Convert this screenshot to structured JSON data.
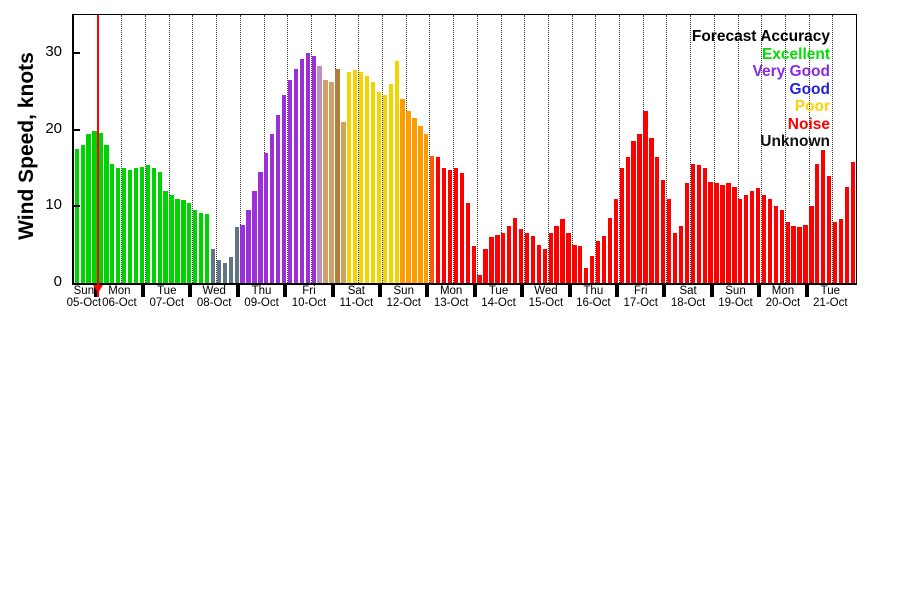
{
  "chart_data": {
    "type": "bar",
    "title": "",
    "ylabel": "Wind Speed, knots",
    "xlabel": "",
    "ylim": [
      0,
      35
    ],
    "yticks": [
      0,
      10,
      20,
      30
    ],
    "x_start": "05-Oct 12:00",
    "bar_interval_hours": 3,
    "bars_per_day": 8,
    "first_day_offset_slots": 4,
    "grid": {
      "style": "dotted",
      "every_slots": 4,
      "start_slot": 4
    },
    "legend": {
      "title": "Forecast Accuracy",
      "position": "top-right",
      "title_color": "#000000",
      "entries": [
        {
          "label": "Excellent",
          "color": "#00dd00"
        },
        {
          "label": "Very Good",
          "color": "#8a2be2"
        },
        {
          "label": "Good",
          "color": "#2222dd"
        },
        {
          "label": "Poor",
          "color": "#ffd300"
        },
        {
          "label": "Noise",
          "color": "#ff0000"
        },
        {
          "label": "Unknown",
          "color": "#111111"
        }
      ]
    },
    "colors": {
      "ex": "#00d400",
      "sl": "#5f7587",
      "vg": "#9b30d9",
      "mv": "#bf8fbf",
      "tn": "#cfa165",
      "tn2": "#b07f3f",
      "po": "#f2d500",
      "or": "#ff9d00",
      "or2": "#ff5a00",
      "no": "#ff0000"
    },
    "now_line": {
      "color": "#ff0000",
      "slot": 4,
      "time": "06-Oct 00:00"
    },
    "days": [
      {
        "day": "Sun",
        "date": "05-Oct"
      },
      {
        "day": "Mon",
        "date": "06-Oct"
      },
      {
        "day": "Tue",
        "date": "07-Oct"
      },
      {
        "day": "Wed",
        "date": "08-Oct"
      },
      {
        "day": "Thu",
        "date": "09-Oct"
      },
      {
        "day": "Fri",
        "date": "10-Oct"
      },
      {
        "day": "Sat",
        "date": "11-Oct"
      },
      {
        "day": "Sun",
        "date": "12-Oct"
      },
      {
        "day": "Mon",
        "date": "13-Oct"
      },
      {
        "day": "Tue",
        "date": "14-Oct"
      },
      {
        "day": "Wed",
        "date": "15-Oct"
      },
      {
        "day": "Thu",
        "date": "16-Oct"
      },
      {
        "day": "Fri",
        "date": "17-Oct"
      },
      {
        "day": "Sat",
        "date": "18-Oct"
      },
      {
        "day": "Sun",
        "date": "19-Oct"
      },
      {
        "day": "Mon",
        "date": "20-Oct"
      },
      {
        "day": "Tue",
        "date": "21-Oct"
      }
    ],
    "bars": [
      [
        17.5,
        "ex"
      ],
      [
        18.0,
        "ex"
      ],
      [
        19.5,
        "ex"
      ],
      [
        19.8,
        "ex"
      ],
      [
        19.6,
        "ex"
      ],
      [
        18.0,
        "ex"
      ],
      [
        15.5,
        "ex"
      ],
      [
        15.0,
        "ex"
      ],
      [
        15.0,
        "ex"
      ],
      [
        14.8,
        "ex"
      ],
      [
        15.0,
        "ex"
      ],
      [
        15.2,
        "ex"
      ],
      [
        15.4,
        "ex"
      ],
      [
        15.0,
        "ex"
      ],
      [
        14.5,
        "ex"
      ],
      [
        12.0,
        "ex"
      ],
      [
        11.5,
        "ex"
      ],
      [
        11.0,
        "ex"
      ],
      [
        10.8,
        "ex"
      ],
      [
        10.5,
        "ex"
      ],
      [
        9.5,
        "ex"
      ],
      [
        9.2,
        "ex"
      ],
      [
        9.0,
        "ex"
      ],
      [
        4.5,
        "sl"
      ],
      [
        3.0,
        "sl"
      ],
      [
        2.6,
        "sl"
      ],
      [
        3.4,
        "sl"
      ],
      [
        7.3,
        "sl"
      ],
      [
        7.6,
        "vg"
      ],
      [
        9.5,
        "vg"
      ],
      [
        12.0,
        "vg"
      ],
      [
        14.5,
        "vg"
      ],
      [
        17.0,
        "vg"
      ],
      [
        19.5,
        "vg"
      ],
      [
        22.0,
        "vg"
      ],
      [
        24.5,
        "vg"
      ],
      [
        26.5,
        "vg"
      ],
      [
        28.0,
        "vg"
      ],
      [
        29.3,
        "vg"
      ],
      [
        30.0,
        "vg"
      ],
      [
        29.6,
        "vg"
      ],
      [
        28.3,
        "mv"
      ],
      [
        26.5,
        "tn"
      ],
      [
        26.2,
        "tn"
      ],
      [
        28.0,
        "tn2"
      ],
      [
        21.0,
        "tn"
      ],
      [
        27.5,
        "po"
      ],
      [
        27.8,
        "po"
      ],
      [
        27.5,
        "po"
      ],
      [
        27.0,
        "po"
      ],
      [
        26.3,
        "po"
      ],
      [
        25.0,
        "po"
      ],
      [
        24.5,
        "po"
      ],
      [
        26.0,
        "po"
      ],
      [
        29.0,
        "po"
      ],
      [
        24.0,
        "or"
      ],
      [
        22.5,
        "or"
      ],
      [
        21.5,
        "or"
      ],
      [
        20.5,
        "or"
      ],
      [
        19.5,
        "or"
      ],
      [
        16.6,
        "or2"
      ],
      [
        16.4,
        "no"
      ],
      [
        15.0,
        "no"
      ],
      [
        14.7,
        "no"
      ],
      [
        15.0,
        "no"
      ],
      [
        14.4,
        "no"
      ],
      [
        10.5,
        "no"
      ],
      [
        4.8,
        "no"
      ],
      [
        1.0,
        "no"
      ],
      [
        4.5,
        "no"
      ],
      [
        6.0,
        "no"
      ],
      [
        6.3,
        "no"
      ],
      [
        6.5,
        "no"
      ],
      [
        7.5,
        "no"
      ],
      [
        8.5,
        "no"
      ],
      [
        7.0,
        "no"
      ],
      [
        6.5,
        "no"
      ],
      [
        6.2,
        "no"
      ],
      [
        5.0,
        "no"
      ],
      [
        4.5,
        "no"
      ],
      [
        6.5,
        "no"
      ],
      [
        7.5,
        "no"
      ],
      [
        8.4,
        "no"
      ],
      [
        6.5,
        "no"
      ],
      [
        5.0,
        "no"
      ],
      [
        4.8,
        "no"
      ],
      [
        2.0,
        "no"
      ],
      [
        3.5,
        "no"
      ],
      [
        5.5,
        "no"
      ],
      [
        6.2,
        "no"
      ],
      [
        8.5,
        "no"
      ],
      [
        11.0,
        "no"
      ],
      [
        15.0,
        "no"
      ],
      [
        16.5,
        "no"
      ],
      [
        18.5,
        "no"
      ],
      [
        19.5,
        "no"
      ],
      [
        22.5,
        "no"
      ],
      [
        19.0,
        "no"
      ],
      [
        16.5,
        "no"
      ],
      [
        13.5,
        "no"
      ],
      [
        11.0,
        "no"
      ],
      [
        6.5,
        "no"
      ],
      [
        7.5,
        "no"
      ],
      [
        13.0,
        "no"
      ],
      [
        15.5,
        "no"
      ],
      [
        15.4,
        "no"
      ],
      [
        15.0,
        "no"
      ],
      [
        13.2,
        "no"
      ],
      [
        13.0,
        "no"
      ],
      [
        12.8,
        "no"
      ],
      [
        13.1,
        "no"
      ],
      [
        12.5,
        "no"
      ],
      [
        11.0,
        "no"
      ],
      [
        11.5,
        "no"
      ],
      [
        12.0,
        "no"
      ],
      [
        12.4,
        "no"
      ],
      [
        11.5,
        "no"
      ],
      [
        11.0,
        "no"
      ],
      [
        10.0,
        "no"
      ],
      [
        9.5,
        "no"
      ],
      [
        8.0,
        "no"
      ],
      [
        7.5,
        "no"
      ],
      [
        7.3,
        "no"
      ],
      [
        7.6,
        "no"
      ],
      [
        10.0,
        "no"
      ],
      [
        15.5,
        "no"
      ],
      [
        17.4,
        "no"
      ],
      [
        14.0,
        "no"
      ],
      [
        8.0,
        "no"
      ],
      [
        8.3,
        "no"
      ],
      [
        12.5,
        "no"
      ],
      [
        15.8,
        "no"
      ]
    ]
  }
}
